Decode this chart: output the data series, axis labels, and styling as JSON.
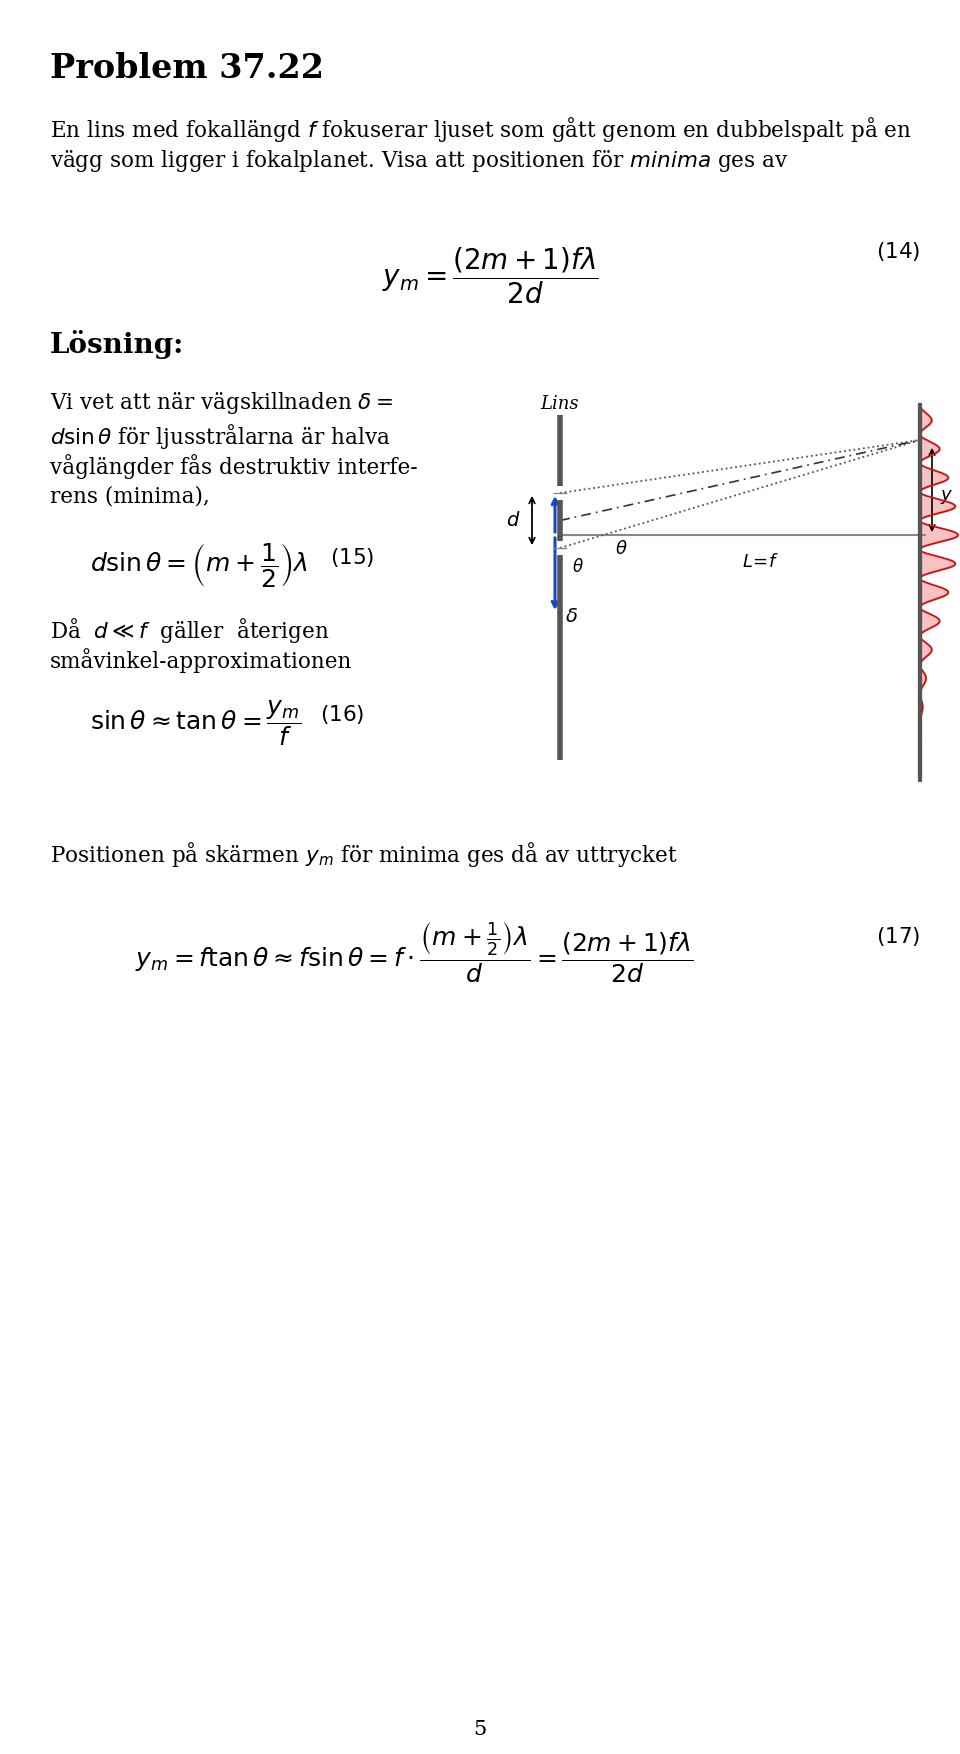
{
  "fig_width": 9.6,
  "fig_height": 17.54,
  "dpi": 100,
  "bg_color": "#ffffff",
  "title": "Problem 37.22",
  "line1": "En lins med fokallängd $f$ fokuserar ljuset som gått genom en dubbelspalt på en",
  "line2": "vägg som ligger i fokalplanet. Visa att positionen för $\\mathit{minima}$ ges av",
  "eq14": "$y_m = \\dfrac{(2m+1)f\\lambda}{2d}$",
  "eq14_num": "$(14)$",
  "losning": "Lösning:",
  "sol_line1": "Vi vet att när vägskillnaden $\\delta =$",
  "sol_line2": "$d\\sin\\theta$ för ljusstrålarna är halva",
  "sol_line3": "våglängder fås destruktiv interfe-",
  "sol_line4": "rens (minima),",
  "eq15": "$d\\sin\\theta = \\left(m + \\dfrac{1}{2}\\right)\\lambda$",
  "eq15_num": "$(15)$",
  "sol_line5": "Då  $d \\ll f$  gäller  återigen",
  "sol_line6": "småvinkel-approximationen",
  "eq16": "$\\sin\\theta \\approx \\tan\\theta = \\dfrac{y_m}{f}$",
  "eq16_num": "$(16)$",
  "bottom_text": "Positionen på skärmen $y_m$ för minima ges då av uttrycket",
  "eq17": "$y_m = f\\tan\\theta \\approx f\\sin\\theta = f \\cdot \\dfrac{\\left(m + \\frac{1}{2}\\right)\\lambda}{d} = \\dfrac{(2m+1)f\\lambda}{2d}$",
  "eq17_num": "$(17)$",
  "page_num": "5"
}
